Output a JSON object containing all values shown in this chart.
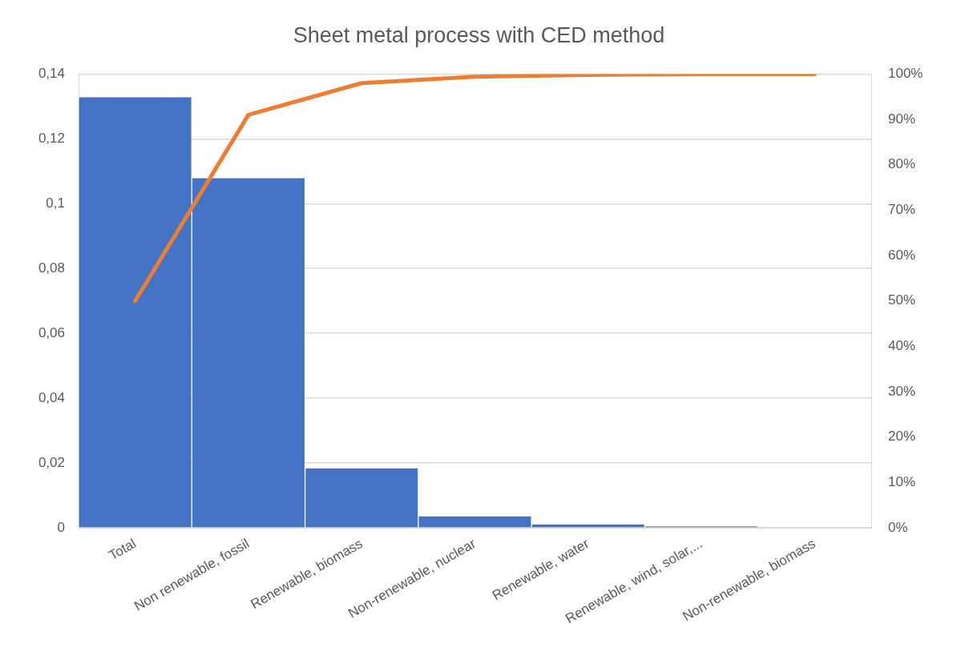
{
  "chart_data": {
    "type": "bar",
    "title": "Sheet metal process with CED method",
    "categories": [
      "Total",
      "Non renewable, fossil",
      "Renewable, biomass",
      "Non-renewable, nuclear",
      "Renewable, water",
      "Renewable, wind, solar,...",
      "Non-renewable, biomass"
    ],
    "series": [
      {
        "color": "#4472c4",
        "values": [
          0.133,
          0.108,
          0.0185,
          0.0037,
          0.0012,
          0.0005,
          0
        ]
      },
      {
        "type": "line",
        "axis": "y2",
        "color": "#ed7d31",
        "values": [
          50,
          91,
          98,
          99.4,
          99.8,
          100,
          100
        ]
      }
    ],
    "ylim": [
      0,
      0.14
    ],
    "yticks": [
      0,
      {
        "value": 0.02,
        "label": "0,02"
      },
      {
        "value": 0.04,
        "label": "0,04"
      },
      {
        "value": 0.06,
        "label": "0,06"
      },
      {
        "value": 0.08,
        "label": "0,08"
      },
      {
        "value": 0.1,
        "label": "0,1"
      },
      {
        "value": 0.12,
        "label": "0,12"
      },
      {
        "value": 0.14,
        "label": "0,14"
      }
    ],
    "y2lim": [
      0,
      100
    ],
    "y2ticks": [
      {
        "value": 0,
        "label": "0%"
      },
      {
        "value": 10,
        "label": "10%"
      },
      {
        "value": 20,
        "label": "20%"
      },
      {
        "value": 30,
        "label": "30%"
      },
      {
        "value": 40,
        "label": "40%"
      },
      {
        "value": 50,
        "label": "50%"
      },
      {
        "value": 60,
        "label": "60%"
      },
      {
        "value": 70,
        "label": "70%"
      },
      {
        "value": 80,
        "label": "80%"
      },
      {
        "value": 90,
        "label": "90%"
      },
      {
        "value": 100,
        "label": "100%"
      }
    ],
    "grid": "y",
    "marker": "none"
  }
}
